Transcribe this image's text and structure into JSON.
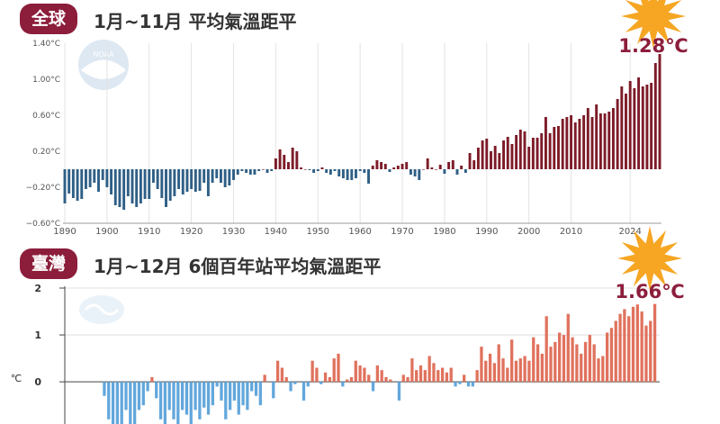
{
  "colors": {
    "badge": "#8c1d3b",
    "accent_text": "#8c1d3b",
    "global_neg": "#2f5f86",
    "global_pos": "#7d1b28",
    "taiwan_neg": "#62a7dc",
    "taiwan_pos": "#e0725d",
    "burst": "#f6a623"
  },
  "icons": {
    "global_logo": "noaa-logo-icon",
    "taiwan_logo": "cwa-logo-icon",
    "burst": "starburst-icon"
  },
  "global": {
    "badge": "全球",
    "heading": "1月~11月 平均氣溫距平",
    "callout": "1.28℃",
    "logo_text": "NOAA"
  },
  "taiwan": {
    "badge": "臺灣",
    "heading": "1月~12月 6個百年站平均氣溫距平",
    "callout": "1.66℃"
  },
  "chart_data": [
    {
      "type": "bar",
      "title": "1月~11月 平均氣溫距平",
      "xlabel": "",
      "ylabel": "",
      "ylim": [
        -0.6,
        1.4
      ],
      "y_ticks": [
        "1.40°C",
        "1.00°C",
        "0.60°C",
        "0.20°C",
        "−0.20°C",
        "−0.60°C"
      ],
      "y_tick_values": [
        1.4,
        1.0,
        0.6,
        0.2,
        -0.2,
        -0.6
      ],
      "x_tick_labels": [
        "1890",
        "1900",
        "1910",
        "1920",
        "1930",
        "1940",
        "1950",
        "1960",
        "1970",
        "1980",
        "1990",
        "2000",
        "2010",
        "2024"
      ],
      "x_tick_values": [
        1890,
        1900,
        1910,
        1920,
        1930,
        1940,
        1950,
        1960,
        1970,
        1980,
        1990,
        2000,
        2010,
        2024
      ],
      "x_start": 1890,
      "values": [
        -0.38,
        -0.27,
        -0.32,
        -0.35,
        -0.33,
        -0.22,
        -0.2,
        -0.15,
        -0.25,
        -0.12,
        -0.2,
        -0.28,
        -0.4,
        -0.42,
        -0.45,
        -0.3,
        -0.38,
        -0.42,
        -0.38,
        -0.33,
        -0.33,
        -0.15,
        -0.22,
        -0.32,
        -0.42,
        -0.35,
        -0.3,
        -0.22,
        -0.28,
        -0.25,
        -0.22,
        -0.25,
        -0.24,
        -0.15,
        -0.3,
        -0.15,
        -0.1,
        -0.15,
        -0.2,
        -0.18,
        -0.12,
        -0.06,
        -0.02,
        -0.04,
        -0.06,
        -0.06,
        -0.02,
        0.0,
        -0.04,
        -0.02,
        0.12,
        0.22,
        0.16,
        0.08,
        0.24,
        0.2,
        0.02,
        0.0,
        -0.01,
        -0.04,
        -0.02,
        0.02,
        -0.04,
        -0.06,
        -0.02,
        -0.08,
        -0.1,
        -0.12,
        -0.12,
        -0.1,
        -0.02,
        -0.04,
        -0.16,
        0.04,
        0.1,
        0.08,
        0.06,
        -0.03,
        0.02,
        0.04,
        0.06,
        0.08,
        -0.06,
        -0.08,
        -0.12,
        0.0,
        0.12,
        0.02,
        0.0,
        0.05,
        -0.05,
        0.08,
        0.1,
        -0.06,
        0.04,
        -0.04,
        0.18,
        0.1,
        0.24,
        0.32,
        0.34,
        0.2,
        0.26,
        0.18,
        0.32,
        0.36,
        0.28,
        0.38,
        0.44,
        0.42,
        0.25,
        0.35,
        0.35,
        0.4,
        0.58,
        0.4,
        0.47,
        0.48,
        0.56,
        0.58,
        0.6,
        0.52,
        0.56,
        0.6,
        0.68,
        0.58,
        0.72,
        0.62,
        0.62,
        0.64,
        0.68,
        0.78,
        0.92,
        0.84,
        0.98,
        0.9,
        1.02,
        0.92,
        0.94,
        0.96,
        1.18,
        1.28
      ]
    },
    {
      "type": "bar",
      "title": "1月~12月 6個百年站平均氣溫距平",
      "xlabel": "",
      "ylabel": "℃",
      "ylim": [
        -0.9,
        2
      ],
      "y_ticks": [
        "2",
        "1",
        "0"
      ],
      "y_tick_values": [
        2,
        1,
        0
      ],
      "values": [
        0,
        0,
        0,
        0,
        0,
        0,
        0,
        0,
        -0.3,
        -0.8,
        -1.0,
        -1.0,
        -0.9,
        -0.6,
        -1.0,
        -0.9,
        -0.6,
        -0.5,
        -0.2,
        0.1,
        -0.35,
        -0.8,
        -0.9,
        -0.6,
        -0.8,
        -1.0,
        -0.6,
        -0.7,
        -0.9,
        -0.6,
        -0.8,
        -0.55,
        -0.7,
        -0.5,
        -0.1,
        -0.4,
        -0.8,
        -0.6,
        -0.4,
        -0.7,
        -0.5,
        -0.6,
        -0.2,
        -0.3,
        -0.5,
        0.15,
        0.0,
        -0.35,
        0.45,
        0.3,
        0.1,
        -0.2,
        -0.05,
        0.0,
        -0.4,
        -0.1,
        0.45,
        0.3,
        -0.05,
        0.2,
        0.1,
        0.5,
        0.6,
        -0.1,
        0.05,
        0.1,
        0.45,
        0.35,
        0.3,
        0.15,
        -0.2,
        0.35,
        0.25,
        0.1,
        0.05,
        0.0,
        -0.4,
        0.15,
        0.1,
        0.5,
        0.25,
        0.35,
        0.25,
        0.55,
        0.4,
        0.25,
        0.3,
        0.2,
        0.3,
        -0.1,
        -0.05,
        0.15,
        -0.1,
        -0.1,
        0.25,
        0.75,
        0.45,
        0.6,
        0.4,
        0.8,
        0.5,
        0.3,
        0.9,
        0.45,
        0.5,
        0.55,
        0.45,
        0.95,
        0.8,
        0.6,
        1.4,
        0.75,
        0.85,
        1.05,
        1.0,
        1.45,
        0.95,
        0.8,
        0.6,
        0.85,
        1.0,
        0.8,
        0.5,
        0.55,
        1.05,
        1.15,
        1.3,
        1.45,
        1.55,
        1.4,
        1.6,
        1.65,
        1.5,
        1.2,
        1.3,
        1.66
      ]
    }
  ]
}
